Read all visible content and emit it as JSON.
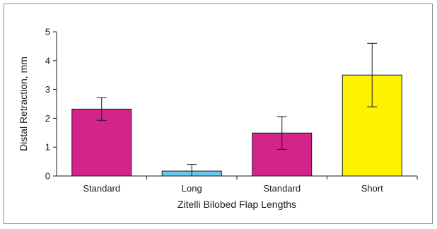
{
  "chart_data": {
    "type": "bar",
    "title": "",
    "xlabel": "Zitelli Bilobed Flap Lengths",
    "ylabel": "Distal Retraction, mm",
    "ylim": [
      0,
      5
    ],
    "yticks": [
      0,
      1,
      2,
      3,
      4,
      5
    ],
    "categories": [
      "Standard",
      "Long",
      "Standard",
      "Short"
    ],
    "values": [
      2.32,
      0.17,
      1.49,
      3.5
    ],
    "error_low": [
      1.93,
      0.0,
      0.92,
      2.4
    ],
    "error_high": [
      2.72,
      0.4,
      2.06,
      4.6
    ],
    "colors": [
      "#d4238a",
      "#67c7ec",
      "#d4238a",
      "#fff200"
    ],
    "grid": false,
    "legend": "none"
  }
}
